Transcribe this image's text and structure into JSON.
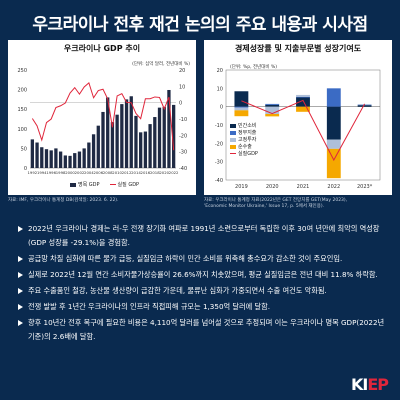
{
  "title": "우크라이나 전후 재건 논의의 주요 내용과 시사점",
  "left_chart": {
    "title": "우크라이나 GDP 추이",
    "unit": "(단위: 십억 달러, 전년대비 %)",
    "source": "자료: IMF, 우크라이나 통계청 DB(검색일: 2023. 6. 22).",
    "legend": [
      "명목 GDP",
      "실질 GDP"
    ],
    "colors": {
      "bar": "#1f2a44",
      "line": "#e0263b"
    }
  },
  "right_chart": {
    "title": "경제성장률 및 지출부문별 성장기여도",
    "unit": "(단위: %p, 전년대비 %)",
    "source_line1": "자료: 우크라이나 통계청 자료(2022년은 GET 전망치를 GET(May 2023),",
    "source_line2": "'Economic Monitor Ukraine,' Issue 17, p. 5에서 재인용).",
    "legend": [
      "민간소비",
      "정부지출",
      "고정투자",
      "순수출",
      "실질GDP"
    ],
    "colors": [
      "#0a2a4f",
      "#3b6bc4",
      "#aebfd9",
      "#f5a800",
      "#e0263b"
    ]
  },
  "chart_data": [
    {
      "type": "bar",
      "title": "우크라이나 GDP 추이",
      "categories": [
        "1992",
        "1993",
        "1994",
        "1995",
        "1996",
        "1997",
        "1998",
        "1999",
        "2000",
        "2001",
        "2002",
        "2003",
        "2004",
        "2005",
        "2006",
        "2007",
        "2008",
        "2009",
        "2010",
        "2011",
        "2012",
        "2013",
        "2014",
        "2015",
        "2016",
        "2017",
        "2018",
        "2019",
        "2020",
        "2021",
        "2022"
      ],
      "x_tick_labels": [
        "1992",
        "1994",
        "1996",
        "1998",
        "2000",
        "2002",
        "2004",
        "2006",
        "2008",
        "2010",
        "2012",
        "2014",
        "2016",
        "2018",
        "2020",
        "2022"
      ],
      "series": [
        {
          "name": "명목 GDP",
          "type": "bar",
          "axis": "left",
          "values": [
            73,
            65,
            53,
            48,
            45,
            50,
            42,
            32,
            31,
            38,
            42,
            50,
            65,
            86,
            108,
            143,
            180,
            117,
            136,
            163,
            175,
            183,
            133,
            91,
            93,
            112,
            130,
            154,
            156,
            199,
            161
          ]
        },
        {
          "name": "실질 GDP",
          "type": "line",
          "axis": "right",
          "values": [
            -9.7,
            -14.2,
            -22.9,
            -12.2,
            -10,
            -3,
            -1.9,
            -0.2,
            5.9,
            9.2,
            5.2,
            9.6,
            12.1,
            3,
            7.4,
            8.2,
            2.3,
            -15.1,
            4.1,
            5.5,
            0.2,
            0,
            -6.6,
            -9.8,
            2.4,
            2.4,
            3.5,
            3.2,
            -3.8,
            3.4,
            -29.1
          ]
        }
      ],
      "ylim_left": [
        0,
        250
      ],
      "yticks_left": [
        0,
        50,
        100,
        150,
        200,
        250
      ],
      "ylim_right": [
        -40,
        20
      ],
      "yticks_right": [
        -40,
        -30,
        -20,
        -10,
        0,
        10,
        20
      ]
    },
    {
      "type": "bar",
      "subtype": "stacked",
      "title": "경제성장률 및 지출부문별 성장기여도",
      "categories": [
        "2019",
        "2020",
        "2021",
        "2022",
        "2023*"
      ],
      "series": [
        {
          "name": "민간소비",
          "values": [
            8.4,
            1,
            5,
            -18,
            0.8
          ]
        },
        {
          "name": "정부지출",
          "values": [
            -0.5,
            0.5,
            0.4,
            10,
            0.3
          ]
        },
        {
          "name": "고정투자",
          "values": [
            -1.5,
            -4,
            1,
            -5,
            0.2
          ]
        },
        {
          "name": "순수출",
          "values": [
            -3.2,
            -1.3,
            -2.8,
            -16,
            0
          ]
        },
        {
          "name": "실질GDP",
          "type": "line",
          "values": [
            3.2,
            -3.8,
            3.4,
            -29.1,
            1.5
          ]
        }
      ],
      "ylim": [
        -40,
        20
      ],
      "yticks": [
        -40,
        -30,
        -20,
        -10,
        0,
        10,
        20
      ]
    }
  ],
  "bullets": [
    "2022년 우크라이나 경제는 러-우 전쟁 장기화 여파로 1991년 소련으로부터 독립한 이후 30여 년만에 최악의 역성장(GDP 성장률 -29.1%)을 경험함.",
    "공급망 차질 심화에 따른 물가 급등, 실질임금 하락이 민간 소비를 위축해 총수요가 감소한 것이 주요인임.",
    "실제로 2022년 12월 연간 소비자물가상승률이 26.6%까지 치솟았으며, 평균 실질임금은 전년 대비 11.8% 하락함.",
    "주요 수출품인 철강, 농산물 생산량이 급감한 가운데, 물류난 심화가 가중되면서 수출 여건도 악화됨.",
    "전쟁 발발 후 1년간 우크라이나의 인프라 직접피해 규모는 1,350억 달러에 달함.",
    "향후 10년간 전후 복구에 필요한 비용은 4,110억 달러를 넘어설 것으로 추정되며 이는 우크라이나 명목 GDP(2022년 기준)의 2.6배에 달함."
  ],
  "logo": {
    "part1": "KI",
    "part2": "EP"
  }
}
